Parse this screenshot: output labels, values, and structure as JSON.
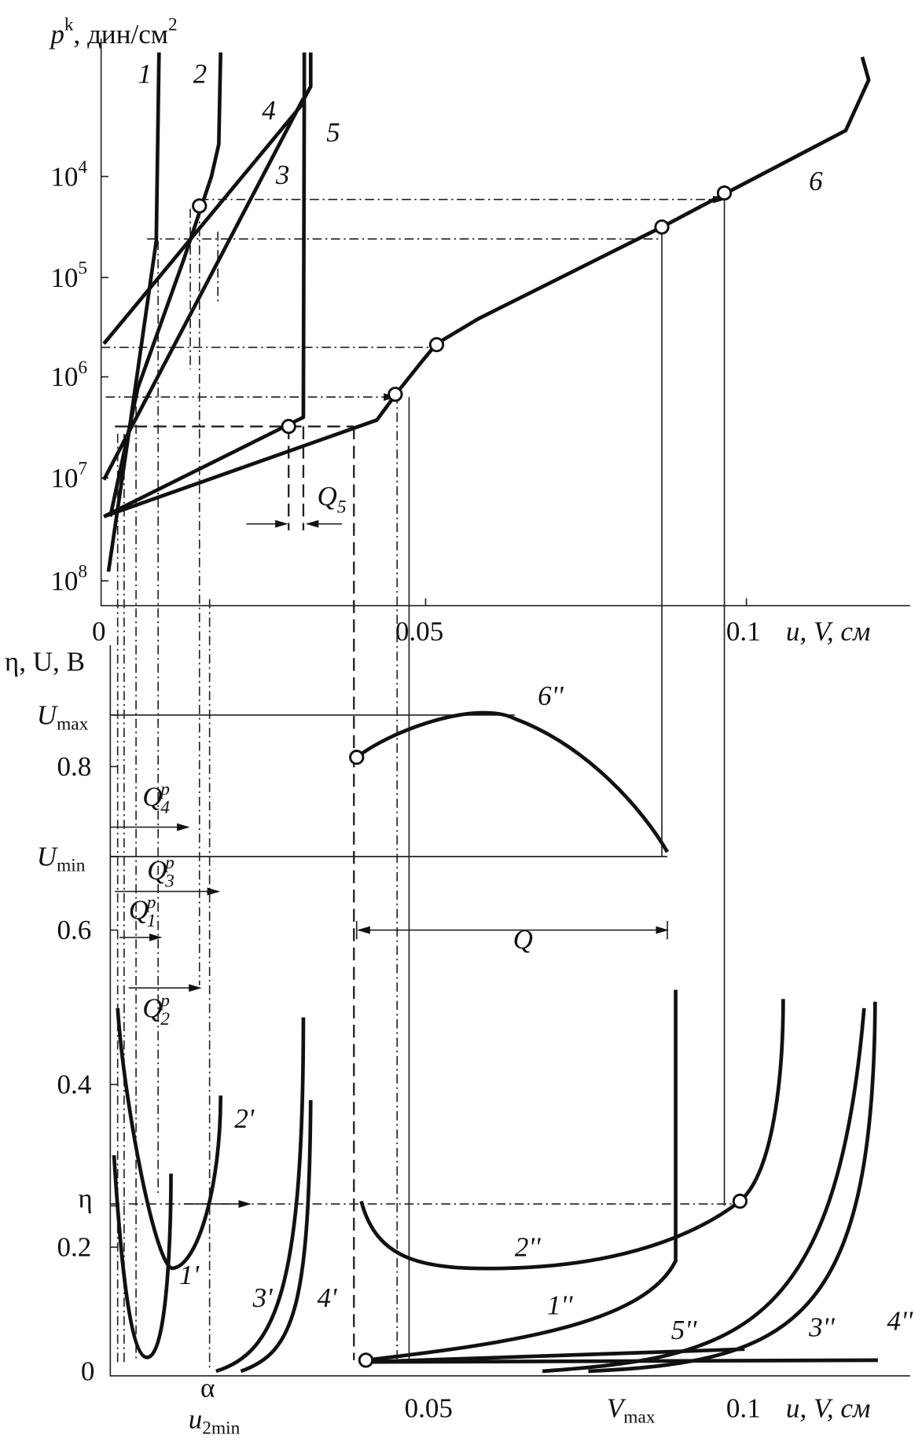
{
  "top_plot": {
    "y_label": {
      "symbol": "p",
      "sup": "k",
      "unit": ", дин/см",
      "unit_sup": "2"
    },
    "y_ticks": [
      {
        "base": "10",
        "exp": "4"
      },
      {
        "base": "10",
        "exp": "5"
      },
      {
        "base": "10",
        "exp": "6"
      },
      {
        "base": "10",
        "exp": "7"
      },
      {
        "base": "10",
        "exp": "8"
      }
    ],
    "x_ticks": [
      "0",
      "0.05",
      "0.1"
    ],
    "x_label": "u, V, см",
    "curve_labels": [
      "1",
      "2",
      "3",
      "4",
      "5",
      "6"
    ],
    "q5": {
      "symbol": "Q",
      "sub": "5"
    }
  },
  "bottom_plot": {
    "y_label": "η, U, В",
    "y_ticks": [
      {
        "symbol": "U",
        "sub": "max"
      },
      "0.8",
      {
        "symbol": "U",
        "sub": "min"
      },
      "0.6",
      "0.4",
      "η",
      "0.2",
      "0"
    ],
    "x_ticks": [
      "0.05",
      "0.1"
    ],
    "x_special": {
      "alpha": "α",
      "u2min": {
        "symbol": "u",
        "sub": "2min"
      },
      "vmax": {
        "symbol": "V",
        "sub": "max"
      }
    },
    "x_label": "u, V, см",
    "curve_labels": [
      "6''",
      "2'",
      "1'",
      "3'",
      "4'",
      "2''",
      "1''",
      "5''",
      "3''",
      "4''"
    ],
    "q_labels": [
      {
        "symbol": "Q",
        "sup": "p",
        "sub": "4"
      },
      {
        "symbol": "Q",
        "sup": "p",
        "sub": "3"
      },
      {
        "symbol": "Q",
        "sup": "p",
        "sub": "1"
      },
      {
        "symbol": "Q",
        "sup": "p",
        "sub": "2"
      }
    ],
    "q": "Q"
  }
}
